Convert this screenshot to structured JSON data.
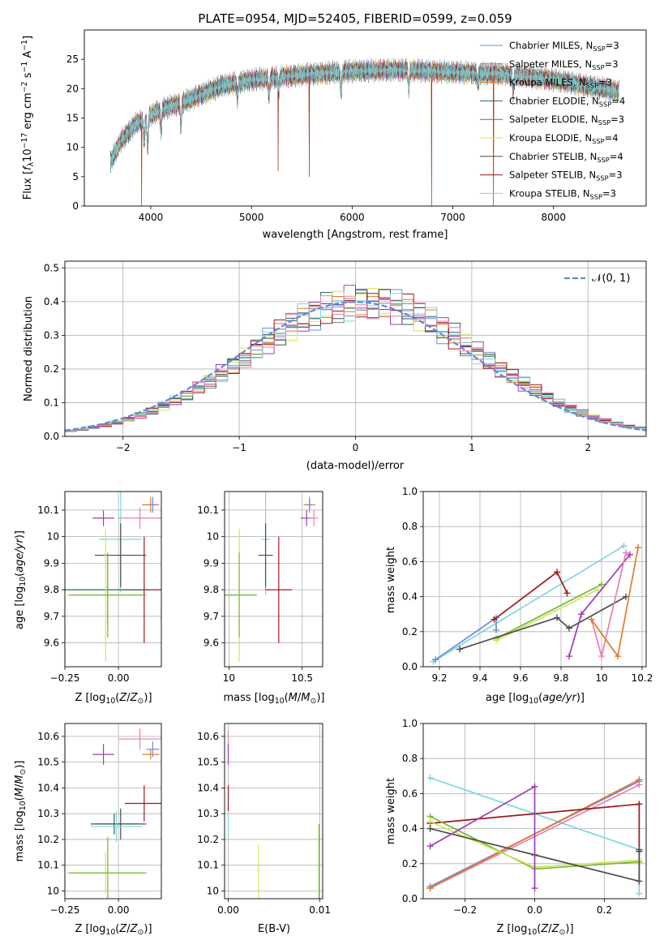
{
  "chart_data": [
    {
      "id": "spectrum",
      "type": "line",
      "title": "PLATE=0954, MJD=52405, FIBERID=0599, z=0.059",
      "xlabel": "wavelength [Angstrom, rest frame]",
      "ylabel": "Flux [f_λ10^-17 erg cm^-2 s^-1 A^-1]",
      "xlim": [
        3340,
        8920
      ],
      "ylim": [
        0,
        30
      ],
      "xticks": [
        4000,
        5000,
        6000,
        7000,
        8000
      ],
      "yticks": [
        0,
        5,
        10,
        15,
        20,
        25
      ],
      "grid": false,
      "legend_position": "upper-right",
      "continuum": [
        [
          3600,
          7.5
        ],
        [
          3700,
          11
        ],
        [
          3850,
          14
        ],
        [
          3950,
          15
        ],
        [
          4100,
          16.5
        ],
        [
          4300,
          17.5
        ],
        [
          4500,
          19
        ],
        [
          4700,
          20.5
        ],
        [
          5000,
          21.5
        ],
        [
          5300,
          22
        ],
        [
          5600,
          22.5
        ],
        [
          6000,
          23
        ],
        [
          6500,
          23.2
        ],
        [
          7000,
          22.8
        ],
        [
          7500,
          22.5
        ],
        [
          8000,
          21.5
        ],
        [
          8500,
          20
        ],
        [
          8650,
          19.5
        ]
      ],
      "absorption_features": [
        [
          3934,
          4.0
        ],
        [
          3969,
          5.0
        ],
        [
          4102,
          4.0
        ],
        [
          4300,
          4.0
        ],
        [
          4861,
          2.5
        ],
        [
          5175,
          3.0
        ],
        [
          5270,
          2.0
        ],
        [
          5890,
          3.5
        ],
        [
          6563,
          3.0
        ],
        [
          7250,
          2.0
        ],
        [
          7600,
          3.0
        ]
      ],
      "spikes": [
        [
          3910,
          0
        ],
        [
          5265,
          6
        ],
        [
          5575,
          5
        ],
        [
          6790,
          0
        ],
        [
          7405,
          0
        ]
      ],
      "series": [
        {
          "name": "Chabrier MILES",
          "nssp": "3",
          "color": "#6b8fd9"
        },
        {
          "name": "Salpeter MILES",
          "nssp": "3",
          "color": "#7f7f7f"
        },
        {
          "name": "Kroupa MILES",
          "nssp": "3",
          "color": "#e07b28"
        },
        {
          "name": "Chabrier ELODIE",
          "nssp": "4",
          "color": "#2f5f5f"
        },
        {
          "name": "Salpeter ELODIE",
          "nssp": "3",
          "color": "#9b3fb5"
        },
        {
          "name": "Kroupa ELODIE",
          "nssp": "4",
          "color": "#cfe657"
        },
        {
          "name": "Chabrier STELIB",
          "nssp": "4",
          "color": "#4d4d4d"
        },
        {
          "name": "Salpeter STELIB",
          "nssp": "3",
          "color": "#a01818"
        },
        {
          "name": "Kroupa STELIB",
          "nssp": "3",
          "color": "#7dd6dc"
        }
      ]
    },
    {
      "id": "residuals",
      "type": "line",
      "xlabel": "(data-model)/error",
      "ylabel": "Normed distribution",
      "xlim": [
        -2.5,
        2.5
      ],
      "ylim": [
        0,
        0.52
      ],
      "xticks": [
        -2,
        -1,
        0,
        1,
        2
      ],
      "yticks": [
        0.0,
        0.1,
        0.2,
        0.3,
        0.4,
        0.5
      ],
      "grid": true,
      "legend_position": "upper-right",
      "normal_curve": {
        "label": "𝒩(0, 1)",
        "color": "#5b8bd9",
        "mean": 0,
        "sigma": 1
      },
      "bin_width": 0.1,
      "series_colors": [
        "#6b8fd9",
        "#7f7f7f",
        "#e07b28",
        "#2f5f5f",
        "#9b3fb5",
        "#cfe657",
        "#4d4d4d",
        "#a01818",
        "#7dd6dc",
        "#e87fa8"
      ]
    },
    {
      "id": "age-vs-Z",
      "type": "scatter",
      "xlabel": "Z [log10(Z/Z⊙)]",
      "ylabel": "age  [log10(age/yr)]",
      "xlim": [
        -0.25,
        0.2
      ],
      "ylim": [
        9.51,
        10.17
      ],
      "xticks": [
        -0.25,
        0.0
      ],
      "xticklabels": [
        "−0.25",
        "0.00"
      ],
      "yticks": [
        9.6,
        9.7,
        9.8,
        9.9,
        10.0,
        10.1
      ],
      "grid": true,
      "points": [
        {
          "color": "#9b3fb5",
          "x": -0.07,
          "xerr": 0.05,
          "y": 10.07,
          "yerr": 0.03
        },
        {
          "color": "#e07b28",
          "x": 0.15,
          "xerr": 0.04,
          "y": 10.12,
          "yerr": 0.03
        },
        {
          "color": "#6b8fd9",
          "x": 0.16,
          "xerr": 0.02,
          "y": 10.12,
          "yerr": 0.03
        },
        {
          "color": "#e87fa8",
          "x": 0.1,
          "xerr": 0.1,
          "y": 10.07,
          "yerr": 0.04
        },
        {
          "color": "#7dd6dc",
          "x": 0.01,
          "xerr": 0.1,
          "y": 9.99,
          "yerr": 0.2
        },
        {
          "color": "#4d4d4d",
          "x": 0.01,
          "xerr": 0.12,
          "y": 9.93,
          "yerr": 0.12
        },
        {
          "color": "#a01818",
          "x": 0.12,
          "xerr": 0.1,
          "y": 9.8,
          "yerr": 0.2
        },
        {
          "color": "#2f5f5f",
          "x": -0.05,
          "xerr": 0.2,
          "y": 9.8,
          "yerr": 0.13
        },
        {
          "color": "#cfe657",
          "x": -0.06,
          "xerr": 0.18,
          "y": 9.78,
          "yerr": 0.25
        },
        {
          "color": "#7ab33a",
          "x": -0.05,
          "xerr": 0.18,
          "y": 9.78,
          "yerr": 0.16
        }
      ]
    },
    {
      "id": "age-vs-mass",
      "type": "scatter",
      "xlabel": "mass [log10(M/M⊙)]",
      "xlim": [
        9.97,
        10.64
      ],
      "ylim": [
        9.51,
        10.17
      ],
      "xticks": [
        10.0,
        10.5
      ],
      "yticks": [
        9.6,
        9.7,
        9.8,
        9.9,
        10.0,
        10.1
      ],
      "grid": true,
      "points": [
        {
          "color": "#9b3fb5",
          "x": 10.53,
          "xerr": 0.04,
          "y": 10.07,
          "yerr": 0.03
        },
        {
          "color": "#e07b28",
          "x": 10.55,
          "xerr": 0.04,
          "y": 10.12,
          "yerr": 0.02
        },
        {
          "color": "#6b8fd9",
          "x": 10.55,
          "xerr": 0.02,
          "y": 10.12,
          "yerr": 0.03
        },
        {
          "color": "#e87fa8",
          "x": 10.58,
          "xerr": 0.03,
          "y": 10.07,
          "yerr": 0.03
        },
        {
          "color": "#7dd6dc",
          "x": 10.25,
          "xerr": 0.03,
          "y": 9.99,
          "yerr": 0.21
        },
        {
          "color": "#4d4d4d",
          "x": 10.25,
          "xerr": 0.05,
          "y": 9.93,
          "yerr": 0.12
        },
        {
          "color": "#a01818",
          "x": 10.34,
          "xerr": 0.09,
          "y": 9.8,
          "yerr": 0.2
        },
        {
          "color": "#cfe657",
          "x": 10.07,
          "xerr": 0.12,
          "y": 9.78,
          "yerr": 0.25
        },
        {
          "color": "#7ab33a",
          "x": 10.07,
          "xerr": 0.12,
          "y": 9.78,
          "yerr": 0.16
        }
      ]
    },
    {
      "id": "weight-vs-age",
      "type": "line",
      "xlabel": "age  [log10(age/yr)]",
      "ylabel": "mass weight",
      "xlim": [
        9.12,
        10.22
      ],
      "ylim": [
        0,
        1.0
      ],
      "xticks": [
        9.2,
        9.4,
        9.6,
        9.8,
        10.0,
        10.2
      ],
      "yticks": [
        0.0,
        0.2,
        0.4,
        0.6,
        0.8,
        1.0
      ],
      "grid": true,
      "series": [
        {
          "color": "#7dd6dc",
          "x": [
            9.17,
            10.11
          ],
          "y": [
            0.03,
            0.69
          ]
        },
        {
          "color": "#6b8fd9",
          "x": [
            9.18,
            9.48,
            9.48
          ],
          "y": [
            0.04,
            0.28,
            0.21
          ]
        },
        {
          "color": "#a01818",
          "x": [
            9.47,
            9.78,
            9.83
          ],
          "y": [
            0.27,
            0.54,
            0.42
          ]
        },
        {
          "color": "#7ab33a",
          "x": [
            9.48,
            10.0
          ],
          "y": [
            0.16,
            0.47
          ]
        },
        {
          "color": "#cfe657",
          "x": [
            9.48,
            9.98
          ],
          "y": [
            0.15,
            0.44
          ]
        },
        {
          "color": "#4d4d4d",
          "x": [
            9.3,
            9.78,
            9.84,
            10.12
          ],
          "y": [
            0.1,
            0.28,
            0.22,
            0.4
          ]
        },
        {
          "color": "#9b3fb5",
          "x": [
            9.84,
            9.9,
            10.14
          ],
          "y": [
            0.06,
            0.3,
            0.64
          ]
        },
        {
          "color": "#e87fa8",
          "x": [
            9.95,
            10.0,
            10.12
          ],
          "y": [
            0.27,
            0.06,
            0.65
          ]
        },
        {
          "color": "#e07b28",
          "x": [
            9.95,
            10.08,
            10.18
          ],
          "y": [
            0.27,
            0.06,
            0.68
          ]
        }
      ]
    },
    {
      "id": "mass-vs-Z",
      "type": "scatter",
      "xlabel": "Z [log10(Z/Z⊙)]",
      "ylabel": "mass [log10(M/M⊙)]",
      "xlim": [
        -0.25,
        0.2
      ],
      "ylim": [
        9.97,
        10.65
      ],
      "xticks": [
        -0.25,
        0.0
      ],
      "xticklabels": [
        "−0.25",
        "0.00"
      ],
      "yticks": [
        10.0,
        10.1,
        10.2,
        10.3,
        10.4,
        10.5,
        10.6
      ],
      "grid": true,
      "points": [
        {
          "color": "#9b3fb5",
          "x": -0.07,
          "xerr": 0.05,
          "y": 10.53,
          "yerr": 0.04
        },
        {
          "color": "#e07b28",
          "x": 0.15,
          "xerr": 0.04,
          "y": 10.53,
          "yerr": 0.02
        },
        {
          "color": "#6b8fd9",
          "x": 0.16,
          "xerr": 0.03,
          "y": 10.55,
          "yerr": 0.03
        },
        {
          "color": "#e87fa8",
          "x": 0.1,
          "xerr": 0.1,
          "y": 10.59,
          "yerr": 0.04
        },
        {
          "color": "#a01818",
          "x": 0.12,
          "xerr": 0.09,
          "y": 10.34,
          "yerr": 0.07
        },
        {
          "color": "#4d4d4d",
          "x": 0.01,
          "xerr": 0.12,
          "y": 10.26,
          "yerr": 0.06
        },
        {
          "color": "#2f5f5f",
          "x": -0.02,
          "xerr": 0.11,
          "y": 10.26,
          "yerr": 0.04
        },
        {
          "color": "#7dd6dc",
          "x": -0.01,
          "xerr": 0.12,
          "y": 10.25,
          "yerr": 0.06
        },
        {
          "color": "#cfe657",
          "x": -0.06,
          "xerr": 0.18,
          "y": 10.07,
          "yerr": 0.08
        },
        {
          "color": "#7ab33a",
          "x": -0.05,
          "xerr": 0.18,
          "y": 10.07,
          "yerr": 0.14
        }
      ]
    },
    {
      "id": "mass-vs-ebv",
      "type": "scatter",
      "xlabel": "E(B-V)",
      "xlim": [
        -0.0004,
        0.0103
      ],
      "ylim": [
        9.97,
        10.65
      ],
      "xticks": [
        0.0,
        0.01
      ],
      "xticklabels": [
        "0.00",
        "0.01"
      ],
      "yticks": [
        10.0,
        10.1,
        10.2,
        10.3,
        10.4,
        10.5,
        10.6
      ],
      "grid": true,
      "points": [
        {
          "color": "#e87fa8",
          "x": 0.0,
          "xerr": 0,
          "y": 10.57,
          "yerr": 0.05
        },
        {
          "color": "#9b3fb5",
          "x": 0.0,
          "xerr": 0,
          "y": 10.53,
          "yerr": 0.04
        },
        {
          "color": "#a01818",
          "x": 0.0,
          "xerr": 0,
          "y": 10.36,
          "yerr": 0.05
        },
        {
          "color": "#7dd6dc",
          "x": 0.0,
          "xerr": 0,
          "y": 10.25,
          "yerr": 0.05
        },
        {
          "color": "#cfe657",
          "x": 0.0033,
          "xerr": 0,
          "y": 10.05,
          "yerr": 0.13
        },
        {
          "color": "#7ab33a",
          "x": 0.0099,
          "xerr": 0,
          "y": 10.1,
          "yerr": 0.16
        }
      ]
    },
    {
      "id": "weight-vs-Z",
      "type": "line",
      "xlabel": "Z [log10(Z/Z⊙)]",
      "ylabel": "mass weight",
      "xlim": [
        -0.32,
        0.32
      ],
      "ylim": [
        0,
        1.0
      ],
      "xticks": [
        -0.2,
        0.0,
        0.2
      ],
      "xticklabels": [
        "−0.2",
        "0.0",
        "0.2"
      ],
      "yticks": [
        0.0,
        0.2,
        0.4,
        0.6,
        0.8,
        1.0
      ],
      "grid": true,
      "series": [
        {
          "color": "#7dd6dc",
          "x": [
            -0.3,
            0.3,
            0.3
          ],
          "y": [
            0.69,
            0.28,
            0.03
          ]
        },
        {
          "color": "#6b8fd9",
          "x": [
            -0.3,
            0.3
          ],
          "y": [
            0.07,
            0.67
          ]
        },
        {
          "color": "#e87fa8",
          "x": [
            -0.3,
            0.3
          ],
          "y": [
            0.06,
            0.65
          ]
        },
        {
          "color": "#e07b28",
          "x": [
            -0.3,
            0.3
          ],
          "y": [
            0.06,
            0.68
          ]
        },
        {
          "color": "#a01818",
          "x": [
            -0.3,
            0.3,
            0.3
          ],
          "y": [
            0.43,
            0.54,
            0.27
          ]
        },
        {
          "color": "#7ab33a",
          "x": [
            -0.3,
            0.0,
            0.3
          ],
          "y": [
            0.47,
            0.17,
            0.21
          ]
        },
        {
          "color": "#cfe657",
          "x": [
            -0.3,
            0.0,
            0.3
          ],
          "y": [
            0.44,
            0.18,
            0.22
          ]
        },
        {
          "color": "#4d4d4d",
          "x": [
            -0.3,
            0.0,
            0.3,
            0.3
          ],
          "y": [
            0.4,
            0.25,
            0.1,
            0.28
          ]
        },
        {
          "color": "#9b3fb5",
          "x": [
            -0.3,
            0.0,
            0.0
          ],
          "y": [
            0.3,
            0.64,
            0.06
          ]
        }
      ]
    }
  ]
}
